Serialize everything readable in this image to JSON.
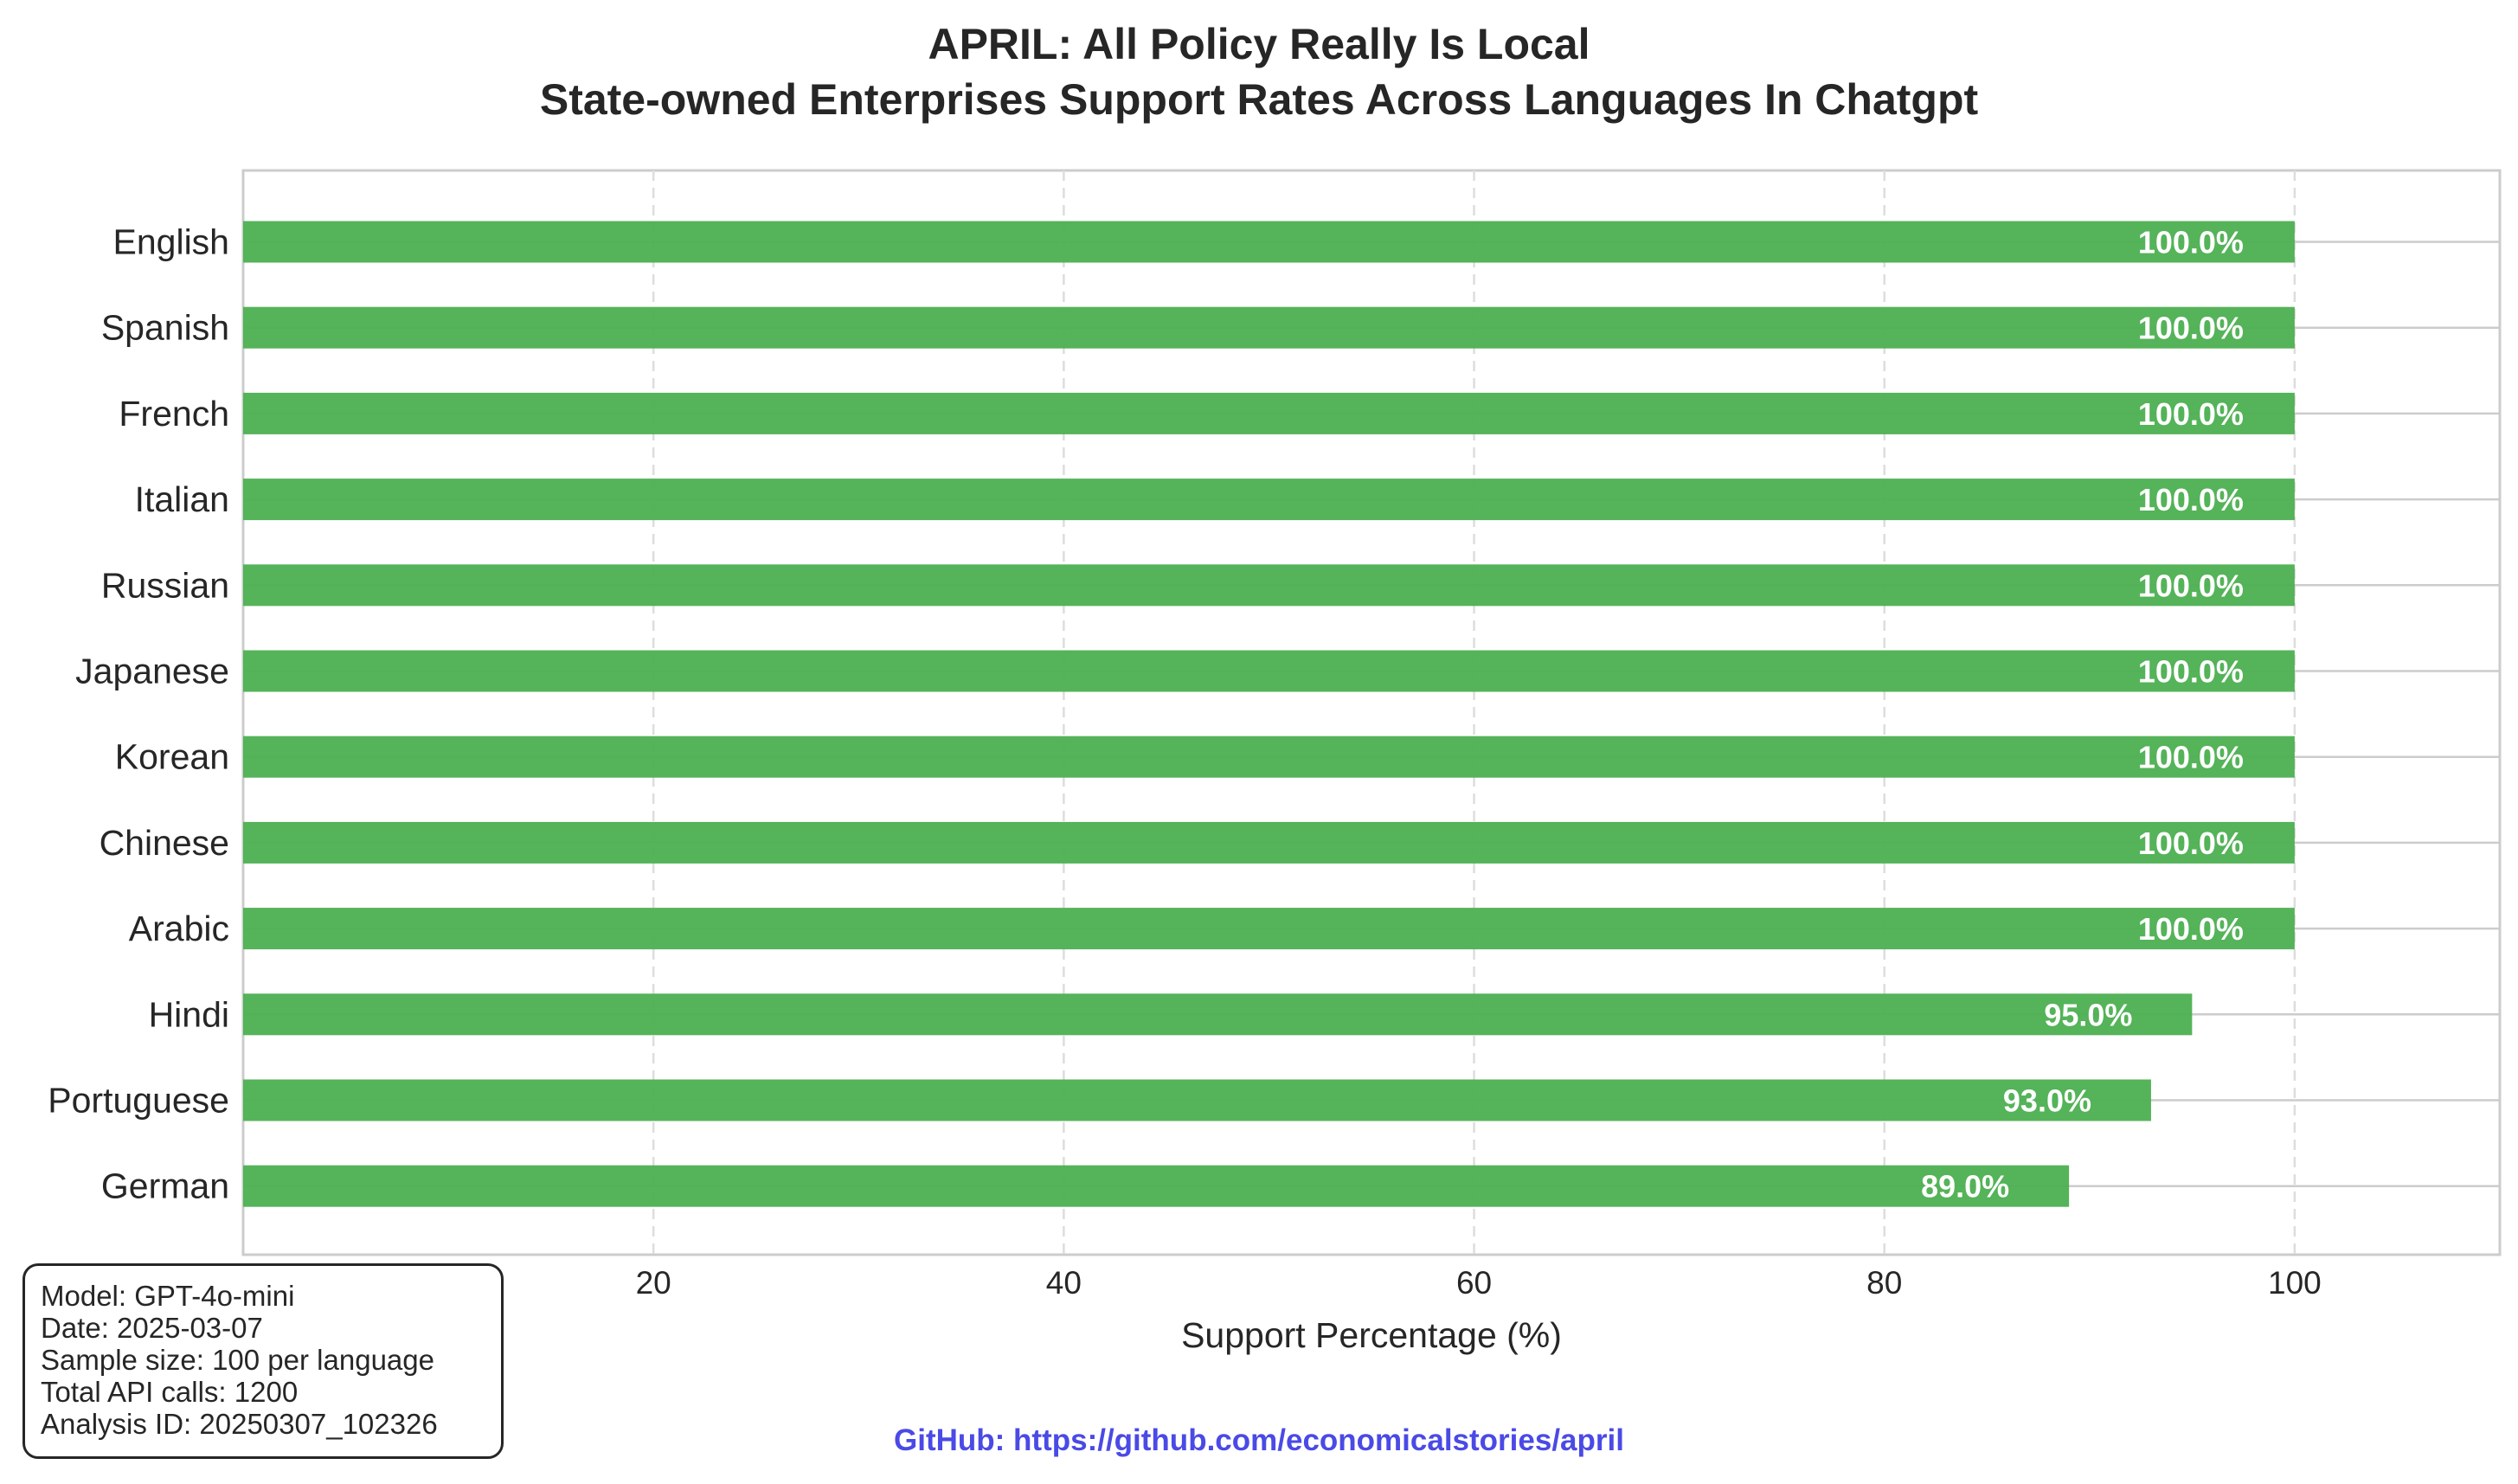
{
  "chart_data": {
    "type": "bar",
    "orientation": "horizontal",
    "title": [
      "APRIL: All Policy Really Is Local",
      "State-owned Enterprises Support Rates Across Languages In Chatgpt"
    ],
    "xlabel": "Support Percentage (%)",
    "ylabel": "",
    "xlim": [
      0,
      110
    ],
    "xticks": [
      0,
      20,
      40,
      60,
      80,
      100
    ],
    "grid": "x-dashed",
    "bar_color": "#4caf50",
    "categories": [
      "English",
      "Spanish",
      "French",
      "Italian",
      "Russian",
      "Japanese",
      "Korean",
      "Chinese",
      "Arabic",
      "Hindi",
      "Portuguese",
      "German"
    ],
    "values": [
      100.0,
      100.0,
      100.0,
      100.0,
      100.0,
      100.0,
      100.0,
      100.0,
      100.0,
      95.0,
      93.0,
      89.0
    ],
    "value_labels": [
      "100.0%",
      "100.0%",
      "100.0%",
      "100.0%",
      "100.0%",
      "100.0%",
      "100.0%",
      "100.0%",
      "100.0%",
      "95.0%",
      "93.0%",
      "89.0%"
    ]
  },
  "info_box": {
    "lines": [
      "Model: GPT-4o-mini",
      "Date: 2025-03-07",
      "Sample size: 100 per language",
      "Total API calls: 1200",
      "Analysis ID: 20250307_102326"
    ]
  },
  "footer": {
    "github": "GitHub: https://github.com/economicalstories/april",
    "link_color": "#4a4ae6"
  }
}
